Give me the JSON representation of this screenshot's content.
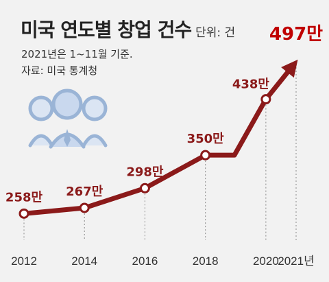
{
  "chart_data": {
    "type": "line",
    "title": "미국 연도별 창업 건수",
    "unit_label": "단위: 건",
    "notes": [
      "2021년은 1~11월 기준.",
      "자료: 미국 통계청"
    ],
    "categories": [
      "2012",
      "2014",
      "2016",
      "2018",
      "2020",
      "2021년"
    ],
    "points": [
      {
        "year": 2012,
        "label": "258만",
        "value": 258
      },
      {
        "year": 2014,
        "label": "267만",
        "value": 267
      },
      {
        "year": 2016,
        "label": "298만",
        "value": 298
      },
      {
        "year": 2018,
        "label": "350만",
        "value": 350
      },
      {
        "year": 2020,
        "label": "438만",
        "value": 438
      },
      {
        "year": 2021,
        "label": "497만",
        "value": 497
      }
    ],
    "value_unit": "만",
    "xlim": [
      2012,
      2021
    ],
    "ylim": [
      240,
      510
    ],
    "colors": {
      "line": "#8b1a1a",
      "highlight": "#c00000",
      "text": "#222222",
      "marker_fill": "#ffffff"
    },
    "grid": false
  },
  "illustration": "people-group-icon"
}
